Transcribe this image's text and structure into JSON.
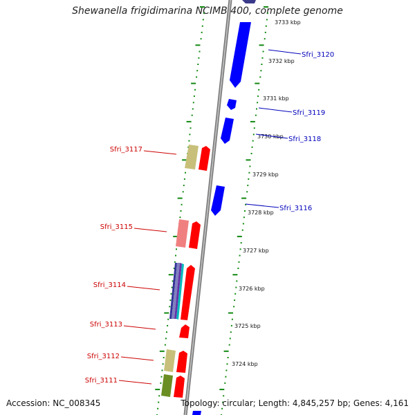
{
  "title": "Shewanella frigidimarina NCIMB 400, complete genome",
  "accession": "Accession: NC_008345",
  "topology": "Topology: circular; Length: 4,845,257 bp; Genes: 4,161",
  "colors": {
    "forward": "#ff0000",
    "reverse": "#0000ff",
    "backbone": "#888888",
    "ticks": "#118811",
    "reverse_label": "#0000bb",
    "forward_label": "#cc0000"
  },
  "scale_labels": [
    "3733 kbp",
    "3732 kbp",
    "3731 kbp",
    "3730 kbp",
    "3729 kbp",
    "3728 kbp",
    "3727 kbp",
    "3726 kbp",
    "3725 kbp",
    "3724 kbp"
  ],
  "reverse_genes": [
    "Sfri_3120",
    "Sfri_3119",
    "Sfri_3118",
    "Sfri_3116"
  ],
  "forward_genes": [
    "Sfri_3117",
    "Sfri_3115",
    "Sfri_3114",
    "Sfri_3113",
    "Sfri_3112",
    "Sfri_3111"
  ]
}
